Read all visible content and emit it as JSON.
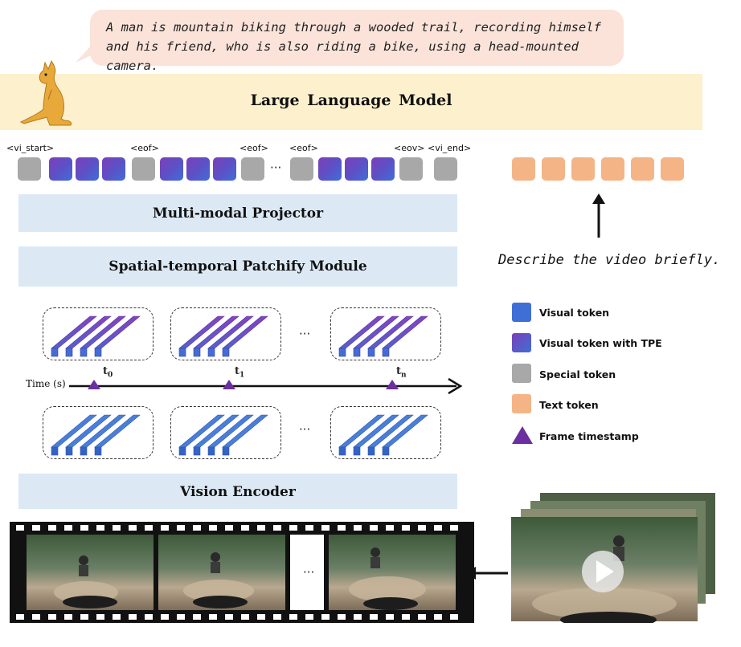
{
  "caption": {
    "line1": "A man is mountain biking through a wooded trail, recording himself",
    "line2": "and his friend, who is also riding a bike, using a head-mounted camera."
  },
  "llm": {
    "label": "Large Language Model"
  },
  "token_labels": {
    "vi_start": "<vi_start>",
    "eof1": "<eof>",
    "eof2": "<eof>",
    "eof3": "<eof>",
    "eov": "<eov>",
    "vi_end": "<vi_end>",
    "ellipsis": "···"
  },
  "modules": {
    "projector": "Multi-modal Projector",
    "patchify": "Spatial-temporal Patchify Module",
    "encoder": "Vision Encoder"
  },
  "prompt": "Describe the video briefly.",
  "timeline": {
    "axis_label": "Time (s)",
    "t0": "t",
    "t0_sub": "0",
    "t1": "t",
    "t1_sub": "1",
    "tn": "t",
    "tn_sub": "n",
    "ellipsis": "···"
  },
  "legend": [
    {
      "label": "Visual token",
      "color": "#3f6fd6",
      "icon": "square"
    },
    {
      "label": "Visual token with TPE",
      "color": "#6a48c2",
      "icon": "square-gradient"
    },
    {
      "label": "Special token",
      "color": "#a8a8a8",
      "icon": "square"
    },
    {
      "label": "Text token",
      "color": "#f4b486",
      "icon": "square"
    },
    {
      "label": "Frame timestamp",
      "color": "#6b2fa0",
      "icon": "triangle"
    }
  ],
  "film": {
    "ellipsis": "···"
  },
  "colors": {
    "llm_band": "#fdf0cd",
    "module_band": "#dce9f5",
    "bubble": "#fbe3da",
    "timestamp": "#6b2fa0"
  }
}
